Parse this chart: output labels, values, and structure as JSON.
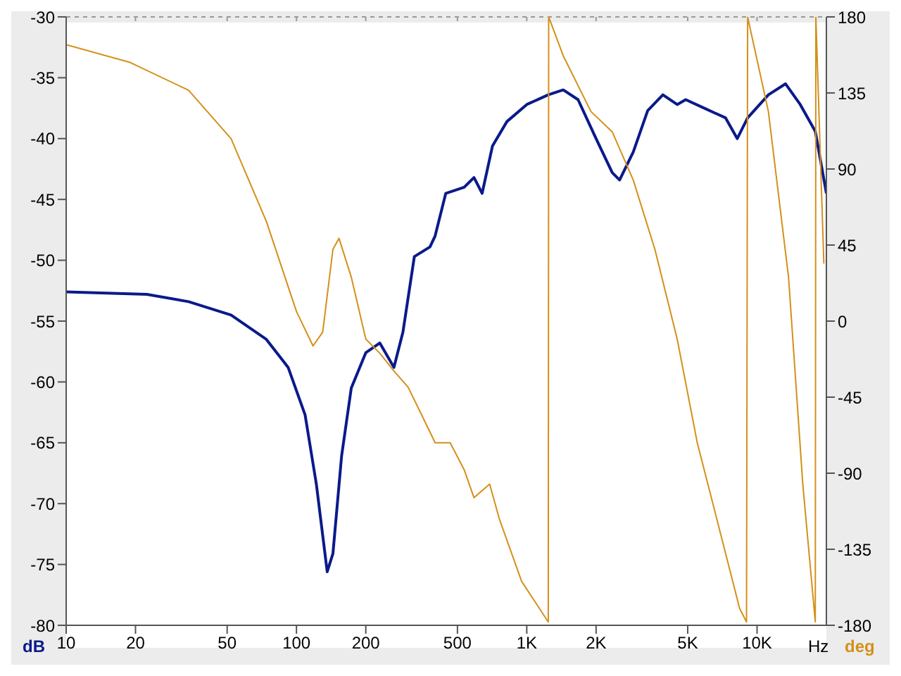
{
  "chart_data": {
    "type": "line",
    "xlabel": "Hz",
    "ylabel": "dB",
    "y2label": "deg",
    "log": "x",
    "grid": true,
    "marker": "none",
    "line_style": "solid",
    "xlim": [
      10,
      20000
    ],
    "xticks": [
      10,
      20,
      50,
      100,
      200,
      500,
      {
        "value": 1000,
        "label": "1K"
      },
      {
        "value": 2000,
        "label": "2K"
      },
      {
        "value": 5000,
        "label": "5K"
      },
      {
        "value": 10000,
        "label": "10K"
      }
    ],
    "ylim": [
      -80,
      -30
    ],
    "yticks": [
      -80,
      -75,
      -70,
      -65,
      -60,
      -55,
      -50,
      -45,
      -40,
      -35,
      -30
    ],
    "y2lim": [
      -180,
      180
    ],
    "y2ticks": [
      -180,
      -135,
      -90,
      -45,
      0,
      45,
      90,
      135,
      180
    ],
    "series": [
      {
        "color": "#0a1a8a",
        "x": [
          10,
          22.4,
          34,
          52,
          74,
          92,
          109,
          122,
          136,
          144,
          157,
          173,
          200,
          230,
          265,
          290,
          325,
          380,
          400,
          445,
          535,
          590,
          640,
          710,
          820,
          1000,
          1240,
          1440,
          1670,
          2000,
          2350,
          2530,
          2900,
          3350,
          3900,
          4500,
          4900,
          5900,
          7300,
          8200,
          9100,
          11200,
          13300,
          15400,
          17900,
          20000
        ],
        "values": [
          -52.6,
          -52.8,
          -53.4,
          -54.5,
          -56.5,
          -58.8,
          -62.7,
          -68.4,
          -75.6,
          -74.1,
          -66.1,
          -60.5,
          -57.6,
          -56.8,
          -58.8,
          -55.9,
          -49.7,
          -48.9,
          -48,
          -44.5,
          -44,
          -43.2,
          -44.5,
          -40.6,
          -38.6,
          -37.2,
          -36.4,
          -36,
          -36.8,
          -40,
          -42.8,
          -43.4,
          -41.1,
          -37.7,
          -36.4,
          -37.2,
          -36.8,
          -37.5,
          -38.3,
          -40,
          -38.3,
          -36.4,
          -35.5,
          -37.2,
          -39.4,
          -44.5
        ]
      },
      {
        "color": "#d4901a",
        "axis": "y2",
        "x": [
          10,
          19,
          34,
          52,
          74,
          100,
          118,
          130,
          144,
          153,
          173,
          200,
          230,
          265,
          305,
          350,
          400,
          465,
          535,
          590,
          690,
          760,
          950,
          1240,
          1245,
          1440,
          1900,
          2350,
          2900,
          3600,
          4500,
          5500,
          6800,
          8400,
          9000,
          9100,
          11200,
          13700,
          15800,
          17900,
          18000,
          19500
        ],
        "values": [
          163.6,
          153,
          136.6,
          108,
          59,
          5.7,
          -14.7,
          -6.5,
          42.5,
          49,
          26,
          -10.6,
          -19,
          -29.5,
          -39,
          -55.6,
          -72,
          -72,
          -88,
          -104.5,
          -96.5,
          -117,
          -154,
          -178,
          180,
          157,
          124,
          112,
          83.5,
          42.5,
          -10.6,
          -72,
          -121,
          -170,
          -178,
          180,
          124,
          26,
          -96.5,
          -178,
          180,
          34
        ]
      }
    ]
  }
}
